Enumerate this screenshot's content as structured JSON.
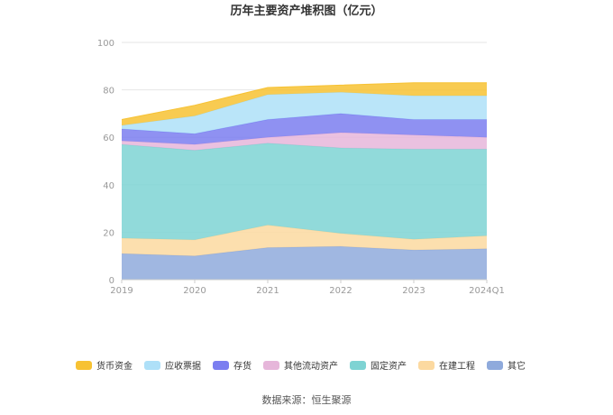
{
  "chart_data": {
    "type": "area",
    "stacked": true,
    "title": "历年主要资产堆积图（亿元）",
    "categories": [
      "2019",
      "2020",
      "2021",
      "2022",
      "2023",
      "2024Q1"
    ],
    "ylim": [
      0,
      100
    ],
    "yticks": [
      0,
      20,
      40,
      60,
      80,
      100
    ],
    "series": [
      {
        "name": "其它",
        "color": "#8faadc",
        "values": [
          11,
          10,
          13.5,
          14,
          12.5,
          13
        ]
      },
      {
        "name": "在建工程",
        "color": "#fcd9a0",
        "values": [
          6.5,
          6.8,
          9.5,
          5.5,
          4.5,
          5.5
        ]
      },
      {
        "name": "固定资产",
        "color": "#7ed3d3",
        "values": [
          39.5,
          37.7,
          34.5,
          36,
          38,
          36.5
        ]
      },
      {
        "name": "其他流动资产",
        "color": "#e6b6da",
        "values": [
          1.5,
          2.5,
          2.5,
          6.5,
          6,
          5
        ]
      },
      {
        "name": "存货",
        "color": "#7b7ef0",
        "values": [
          5,
          4.5,
          7.5,
          8,
          6.5,
          7.5
        ]
      },
      {
        "name": "应收票据",
        "color": "#aee0f8",
        "values": [
          1.5,
          7.5,
          10.5,
          9,
          10,
          10
        ]
      },
      {
        "name": "货币资金",
        "color": "#f7c233",
        "values": [
          2.5,
          4.5,
          3,
          3,
          5.5,
          5.5
        ]
      }
    ],
    "legend_order": [
      "货币资金",
      "应收票据",
      "存货",
      "其他流动资产",
      "固定资产",
      "在建工程",
      "其它"
    ],
    "legend_position": "bottom",
    "grid": true
  },
  "source_label": "数据来源：恒生聚源"
}
